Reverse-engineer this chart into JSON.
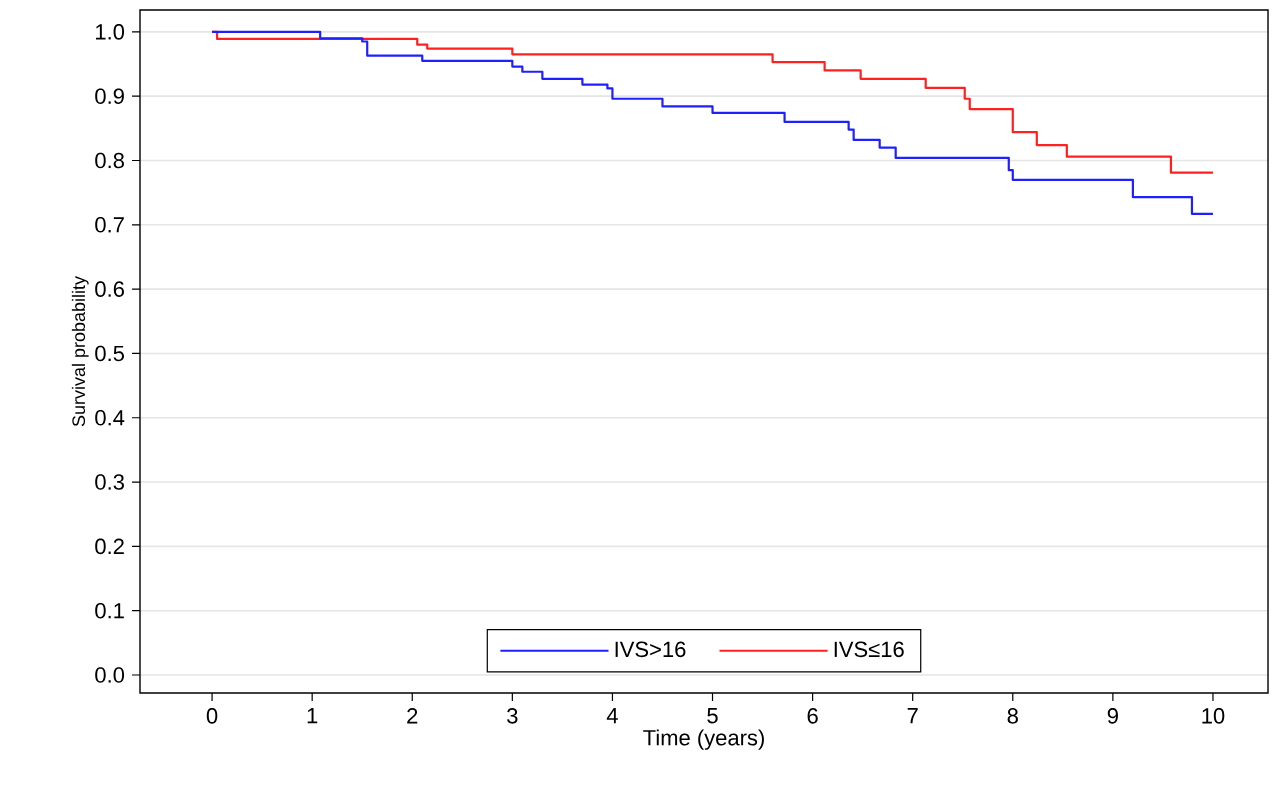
{
  "chart_data": {
    "type": "step",
    "xlabel": "Time (years)",
    "ylabel": "Survival probability",
    "xlim": [
      -0.72,
      10.55
    ],
    "ylim": [
      -0.028,
      1.034
    ],
    "xticks": [
      0,
      1,
      2,
      3,
      4,
      5,
      6,
      7,
      8,
      9,
      10
    ],
    "yticks": [
      {
        "value": 0,
        "label": "0.0"
      },
      {
        "value": 0.1,
        "label": "0.1"
      },
      {
        "value": 0.2,
        "label": "0.2"
      },
      {
        "value": 0.3,
        "label": "0.3"
      },
      {
        "value": 0.4,
        "label": "0.4"
      },
      {
        "value": 0.5,
        "label": "0.5"
      },
      {
        "value": 0.6,
        "label": "0.6"
      },
      {
        "value": 0.7,
        "label": "0.7"
      },
      {
        "value": 0.8,
        "label": "0.8"
      },
      {
        "value": 0.9,
        "label": "0.9"
      },
      {
        "value": 1,
        "label": "1.0"
      }
    ],
    "grid": "y",
    "legend": "bottom",
    "marker": "none",
    "line_style": "solid",
    "series": [
      {
        "name": "IVS>16",
        "color": "#2020ff",
        "x": [
          0,
          1.08,
          1.5,
          1.55,
          2.1,
          3.0,
          3.1,
          3.3,
          3.7,
          3.95,
          4.0,
          4.5,
          5.0,
          5.72,
          6.36,
          6.41,
          6.67,
          6.83,
          7.96,
          8.0,
          9.2,
          9.79,
          10.0
        ],
        "values": [
          1.0,
          0.99,
          0.985,
          0.963,
          0.955,
          0.946,
          0.938,
          0.927,
          0.918,
          0.912,
          0.896,
          0.884,
          0.874,
          0.86,
          0.848,
          0.832,
          0.82,
          0.804,
          0.785,
          0.77,
          0.743,
          0.717,
          0.717
        ]
      },
      {
        "name": "IVS≤16",
        "color": "#ff2020",
        "x": [
          0,
          0.05,
          2.05,
          2.15,
          3.0,
          5.6,
          6.12,
          6.48,
          7.13,
          7.52,
          7.57,
          8.0,
          8.24,
          8.54,
          9.58,
          10.0
        ],
        "values": [
          1.0,
          0.989,
          0.98,
          0.974,
          0.965,
          0.953,
          0.94,
          0.927,
          0.913,
          0.896,
          0.88,
          0.844,
          0.824,
          0.806,
          0.781,
          0.781
        ]
      }
    ]
  }
}
